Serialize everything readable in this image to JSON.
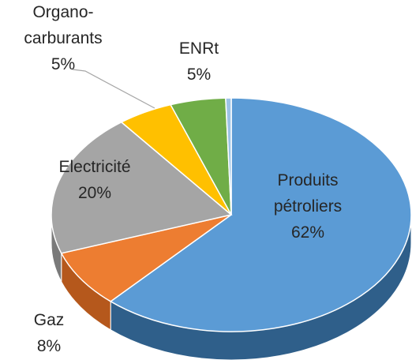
{
  "chart_data": {
    "type": "pie3d",
    "categories": [
      "Produits\npétroliers",
      "Gaz",
      "Electricité",
      "Organo-\ncarburants",
      "ENRt",
      null
    ],
    "values": [
      62,
      8,
      20,
      5,
      5,
      0.5
    ],
    "value_labels": [
      "62%",
      "8%",
      "20%",
      "5%",
      "5%",
      null
    ],
    "colors": [
      "#5b9bd5",
      "#ed7d31",
      "#a5a5a5",
      "#ffc000",
      "#70ad47",
      "#9dc3e6"
    ],
    "side_colors": [
      "#2f5f8a",
      "#b5581c",
      "#7a7a7a",
      "#c49300",
      "#4e7e31",
      "#6f95b8"
    ]
  }
}
